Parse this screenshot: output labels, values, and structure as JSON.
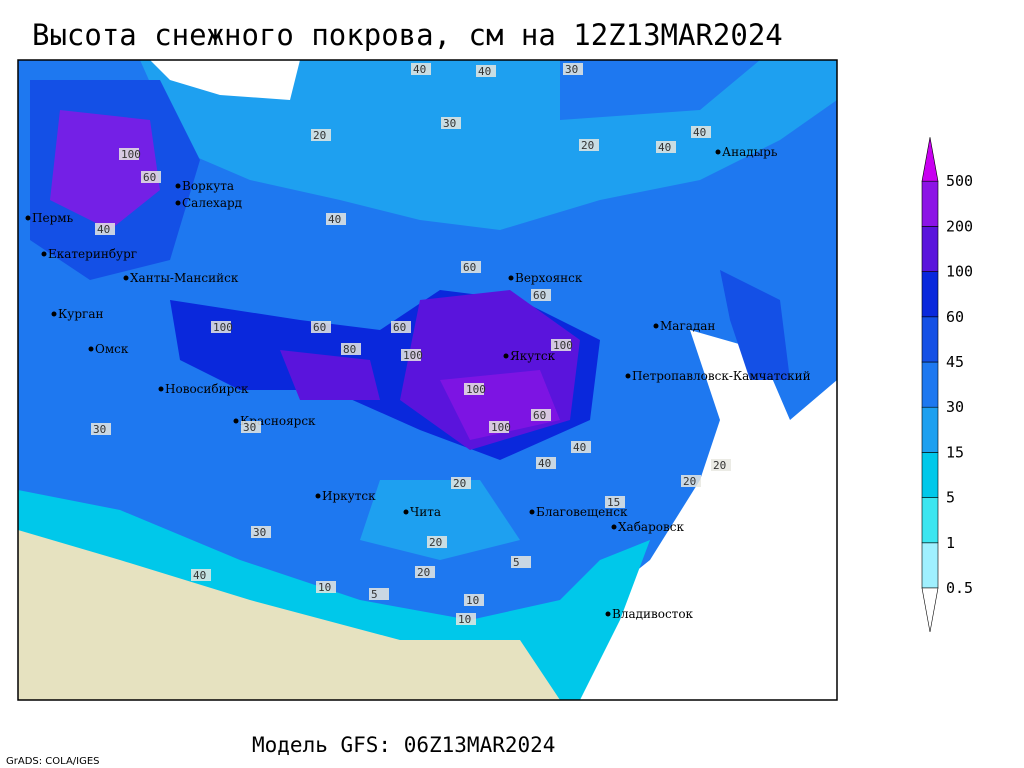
{
  "header": {
    "title": "Высота снежного покрова, см на 12Z13MAR2024"
  },
  "footer": {
    "model": "Модель GFS: 06Z13MAR2024",
    "credit": "GrADS: COLA/IGES"
  },
  "legend": {
    "levels": [
      0.5,
      1,
      5,
      15,
      30,
      45,
      60,
      100,
      200,
      500
    ],
    "colors": [
      "#ffffff",
      "#a0f0ff",
      "#3ce6f0",
      "#00c8ea",
      "#1ea0f0",
      "#1e78f0",
      "#1450e6",
      "#0a28dc",
      "#5a14dc",
      "#8c14e6",
      "#c800f0"
    ]
  },
  "map": {
    "land_color": "#e6e2c0",
    "cities": [
      "Воркута",
      "Салехард",
      "Пермь",
      "Екатеринбург",
      "Ханты-Мансийск",
      "Курган",
      "Омск",
      "Новосибирск",
      "Красноярск",
      "Иркутск",
      "Чита",
      "Верхоянск",
      "Якутск",
      "Магадан",
      "Анадырь",
      "Петропавловск-Камчатский",
      "Благовещенск",
      "Хабаровск",
      "Владивосток"
    ],
    "contour_labels": [
      40,
      40,
      30,
      20,
      30,
      20,
      40,
      40,
      100,
      60,
      40,
      40,
      60,
      60,
      100,
      60,
      100,
      80,
      100,
      100,
      60,
      40,
      30,
      30,
      20,
      20,
      5,
      10,
      20,
      40,
      30,
      5,
      15,
      10,
      10,
      20,
      20,
      40,
      60,
      100
    ]
  }
}
